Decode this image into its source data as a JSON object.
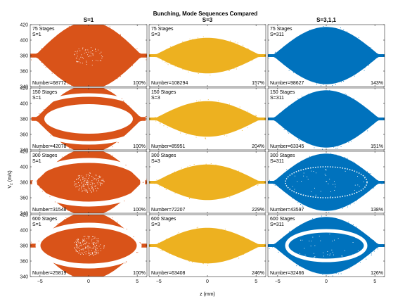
{
  "chart_data": {
    "type": "scatter",
    "title": "Bunching, Mode Sequences Compared",
    "xlabel": "z (mm)",
    "ylabel": "V_z (m/s)",
    "xlim": [
      -6,
      6
    ],
    "ylim": [
      340,
      420
    ],
    "xticks": [
      -5,
      0,
      5
    ],
    "yticks": [
      340,
      360,
      380,
      400,
      420
    ],
    "grid": false,
    "columns": [
      {
        "title": "S=1",
        "color": "#D95319"
      },
      {
        "title": "S=3",
        "color": "#EDB120"
      },
      {
        "title": "S=3,1,1",
        "color": "#0072BD"
      }
    ],
    "rows": [
      [
        {
          "stages": "75 Stages",
          "mode": "S=1",
          "number": "Number=68772",
          "percent": "100%"
        },
        {
          "stages": "75 Stages",
          "mode": "S=3",
          "number": "Number=108294",
          "percent": "157%"
        },
        {
          "stages": "75 Stages",
          "mode": "S=311",
          "number": "Number=98627",
          "percent": "143%"
        }
      ],
      [
        {
          "stages": "150 Stages",
          "mode": "S=1",
          "number": "Number=42078",
          "percent": "100%"
        },
        {
          "stages": "150 Stages",
          "mode": "S=3",
          "number": "Number=85951",
          "percent": "204%"
        },
        {
          "stages": "150 Stages",
          "mode": "S=311",
          "number": "Number=63345",
          "percent": "151%"
        }
      ],
      [
        {
          "stages": "300 Stages",
          "mode": "S=1",
          "number": "Number=31548",
          "percent": "100%"
        },
        {
          "stages": "300 Stages",
          "mode": "S=3",
          "number": "Number=72207",
          "percent": "229%"
        },
        {
          "stages": "300 Stages",
          "mode": "S=311",
          "number": "Number=43597",
          "percent": "138%"
        }
      ],
      [
        {
          "stages": "600 Stages",
          "mode": "S=1",
          "number": "Number=25819",
          "percent": "100%"
        },
        {
          "stages": "600 Stages",
          "mode": "S=3",
          "number": "Number=63408",
          "percent": "246%"
        },
        {
          "stages": "600 Stages",
          "mode": "S=311",
          "number": "Number=32466",
          "percent": "126%"
        }
      ]
    ]
  }
}
